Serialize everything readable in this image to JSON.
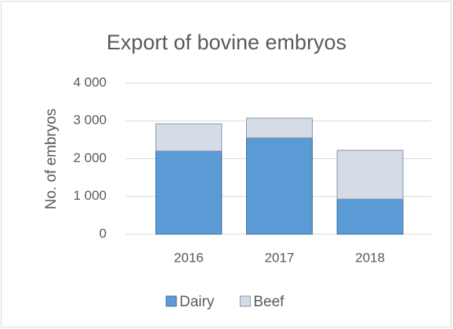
{
  "chart_data": {
    "type": "stacked_bar",
    "title": "Export of bovine embryos",
    "y_label": "No. of embryos",
    "categories": [
      "2016",
      "2017",
      "2018"
    ],
    "series": [
      {
        "name": "Dairy",
        "color": "#5b9bd5",
        "values": [
          2200,
          2550,
          930
        ]
      },
      {
        "name": "Beef",
        "color": "#d6dce5",
        "values": [
          720,
          520,
          1290
        ]
      }
    ],
    "ylim": [
      0,
      4000
    ],
    "yticks": [
      0,
      {
        "value": 1000,
        "label": "1 000"
      },
      {
        "value": 2000,
        "label": "2 000"
      },
      {
        "value": 3000,
        "label": "3 000"
      },
      {
        "value": 4000,
        "label": "4 000"
      }
    ],
    "grid": true,
    "legend": "bottom"
  }
}
